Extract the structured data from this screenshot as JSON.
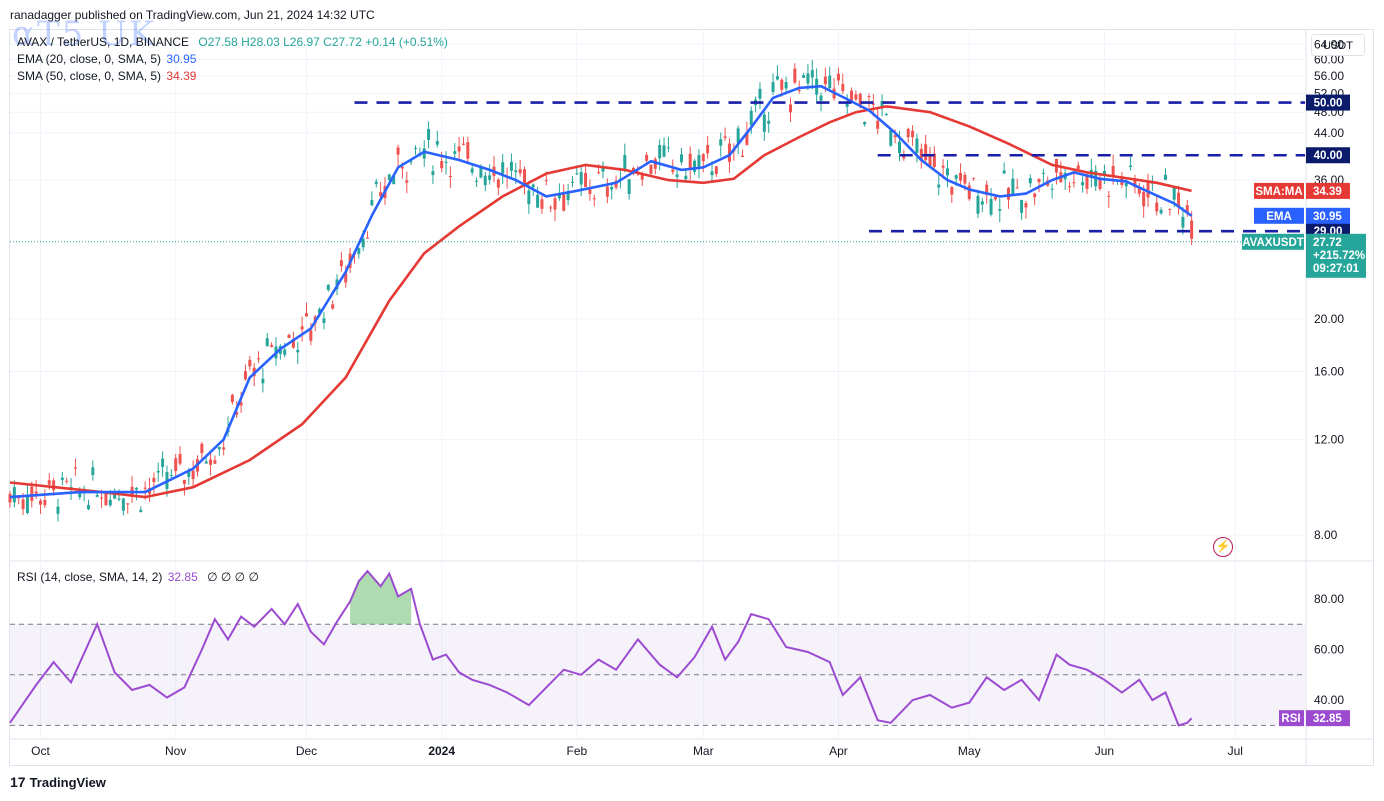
{
  "header": {
    "publisher": "ranadagger published on TradingView.com, Jun 21, 2024 14:32 UTC",
    "watermark": "αΤ5 UK"
  },
  "legend": {
    "symbol": "AVAX / TetherUS, 1D, BINANCE",
    "ohlc": "O27.58  H28.03  L26.97  C27.72  +0.14 (+0.51%)",
    "ema_label": "EMA (20, close, 0, SMA, 5)",
    "ema_value": "30.95",
    "sma_label": "SMA (50, close, 0, SMA, 5)",
    "sma_value": "34.39",
    "rsi_label": "RSI (14, close, SMA, 14, 2)",
    "rsi_value": "32.85",
    "rsi_extra": "∅  ∅  ∅  ∅"
  },
  "currency": "USDT",
  "footer": {
    "brand": "TradingView"
  },
  "colors": {
    "up": "#26a69a",
    "down": "#ef5350",
    "ema": "#2962ff",
    "sma": "#e53935",
    "rsi": "#9c4bd1",
    "level": "#1a1fa8"
  },
  "chart_data": [
    {
      "type": "candlestick",
      "title": "AVAX / TetherUS, 1D, BINANCE",
      "y_scale": "log",
      "ylim": [
        7.2,
        68
      ],
      "y_ticks": [
        "64.00",
        "60.00",
        "56.00",
        "52.00",
        "48.00",
        "44.00",
        "36.00",
        "20.00",
        "16.00",
        "12.00",
        "8.00"
      ],
      "x_ticks": [
        "Oct",
        "Nov",
        "Dec",
        "2024",
        "Feb",
        "Mar",
        "Apr",
        "May",
        "Jun",
        "Jul"
      ],
      "x_range": [
        "2023-09-24",
        "2024-07-17"
      ],
      "series": [
        {
          "name": "EMA (20, close, 0, SMA, 5)",
          "last": 30.95,
          "points": [
            [
              "2023-09-24",
              9.4
            ],
            [
              "2023-10-10",
              9.6
            ],
            [
              "2023-10-25",
              9.6
            ],
            [
              "2023-11-05",
              10.6
            ],
            [
              "2023-11-12",
              12.0
            ],
            [
              "2023-11-18",
              15.6
            ],
            [
              "2023-11-25",
              17.6
            ],
            [
              "2023-12-02",
              19.2
            ],
            [
              "2023-12-10",
              24.4
            ],
            [
              "2023-12-16",
              31.0
            ],
            [
              "2023-12-22",
              38.0
            ],
            [
              "2023-12-28",
              40.6
            ],
            [
              "2024-01-05",
              39.2
            ],
            [
              "2024-01-12",
              37.6
            ],
            [
              "2024-01-18",
              36.0
            ],
            [
              "2024-01-25",
              33.6
            ],
            [
              "2024-02-01",
              34.4
            ],
            [
              "2024-02-10",
              35.6
            ],
            [
              "2024-02-18",
              39.0
            ],
            [
              "2024-02-25",
              37.6
            ],
            [
              "2024-03-01",
              38.0
            ],
            [
              "2024-03-07",
              40.0
            ],
            [
              "2024-03-12",
              45.0
            ],
            [
              "2024-03-17",
              51.0
            ],
            [
              "2024-03-23",
              53.2
            ],
            [
              "2024-03-28",
              53.6
            ],
            [
              "2024-04-02",
              51.2
            ],
            [
              "2024-04-08",
              48.4
            ],
            [
              "2024-04-14",
              44.0
            ],
            [
              "2024-04-20",
              39.2
            ],
            [
              "2024-04-26",
              36.0
            ],
            [
              "2024-05-01",
              34.6
            ],
            [
              "2024-05-08",
              33.6
            ],
            [
              "2024-05-14",
              34.0
            ],
            [
              "2024-05-20",
              36.0
            ],
            [
              "2024-05-25",
              37.2
            ],
            [
              "2024-05-31",
              36.2
            ],
            [
              "2024-06-06",
              35.8
            ],
            [
              "2024-06-12",
              34.0
            ],
            [
              "2024-06-17",
              32.6
            ],
            [
              "2024-06-21",
              30.95
            ]
          ]
        },
        {
          "name": "SMA (50, close, 0, SMA, 5)",
          "last": 34.39,
          "points": [
            [
              "2023-09-24",
              10.0
            ],
            [
              "2023-10-15",
              9.6
            ],
            [
              "2023-10-25",
              9.4
            ],
            [
              "2023-11-05",
              9.8
            ],
            [
              "2023-11-18",
              11.0
            ],
            [
              "2023-11-30",
              12.8
            ],
            [
              "2023-12-10",
              15.6
            ],
            [
              "2023-12-20",
              21.6
            ],
            [
              "2023-12-28",
              26.4
            ],
            [
              "2024-01-05",
              29.6
            ],
            [
              "2024-01-15",
              33.6
            ],
            [
              "2024-01-25",
              37.0
            ],
            [
              "2024-02-03",
              38.4
            ],
            [
              "2024-02-12",
              37.6
            ],
            [
              "2024-02-22",
              36.0
            ],
            [
              "2024-03-01",
              35.6
            ],
            [
              "2024-03-08",
              36.2
            ],
            [
              "2024-03-15",
              40.0
            ],
            [
              "2024-03-23",
              43.2
            ],
            [
              "2024-03-30",
              46.0
            ],
            [
              "2024-04-05",
              48.0
            ],
            [
              "2024-04-12",
              49.2
            ],
            [
              "2024-04-22",
              48.0
            ],
            [
              "2024-05-01",
              45.2
            ],
            [
              "2024-05-10",
              42.0
            ],
            [
              "2024-05-20",
              38.4
            ],
            [
              "2024-05-28",
              37.2
            ],
            [
              "2024-06-05",
              36.4
            ],
            [
              "2024-06-13",
              35.6
            ],
            [
              "2024-06-21",
              34.39
            ]
          ]
        }
      ],
      "levels": [
        {
          "label": "50.00",
          "value": 50.0,
          "from": "2023-12-12",
          "to": "2024-07-17"
        },
        {
          "label": "40.00",
          "value": 40.0,
          "from": "2024-04-10",
          "to": "2024-07-17"
        },
        {
          "label": "29.00",
          "value": 29.0,
          "from": "2024-04-08",
          "to": "2024-07-17"
        }
      ],
      "last_price": {
        "label": "AVAXUSDT",
        "value": "27.72",
        "change": "+215.72%",
        "countdown": "09:27:01"
      },
      "ema_tag": {
        "label": "EMA",
        "value": "30.95"
      },
      "sma_tag": {
        "label": "SMA:MA",
        "value": "34.39"
      }
    },
    {
      "type": "line",
      "title": "RSI (14, close, SMA, 14, 2)",
      "ylim": [
        25,
        95
      ],
      "y_ticks": [
        "80.00",
        "60.00",
        "40.00"
      ],
      "bands": [
        30,
        50,
        70
      ],
      "last": 32.85,
      "points": [
        [
          "2023-09-24",
          31
        ],
        [
          "2023-09-30",
          46
        ],
        [
          "2023-10-04",
          55
        ],
        [
          "2023-10-08",
          47
        ],
        [
          "2023-10-14",
          70
        ],
        [
          "2023-10-18",
          51
        ],
        [
          "2023-10-22",
          44
        ],
        [
          "2023-10-26",
          46
        ],
        [
          "2023-10-30",
          41
        ],
        [
          "2023-11-03",
          45
        ],
        [
          "2023-11-07",
          60
        ],
        [
          "2023-11-10",
          72
        ],
        [
          "2023-11-13",
          64
        ],
        [
          "2023-11-16",
          73
        ],
        [
          "2023-11-19",
          69
        ],
        [
          "2023-11-23",
          76
        ],
        [
          "2023-11-26",
          70
        ],
        [
          "2023-11-29",
          78
        ],
        [
          "2023-12-02",
          67
        ],
        [
          "2023-12-05",
          62
        ],
        [
          "2023-12-08",
          71
        ],
        [
          "2023-12-11",
          79
        ],
        [
          "2023-12-13",
          87
        ],
        [
          "2023-12-15",
          91
        ],
        [
          "2023-12-18",
          85
        ],
        [
          "2023-12-20",
          90
        ],
        [
          "2023-12-22",
          81
        ],
        [
          "2023-12-25",
          84
        ],
        [
          "2023-12-27",
          70
        ],
        [
          "2023-12-30",
          56
        ],
        [
          "2024-01-02",
          58
        ],
        [
          "2024-01-05",
          51
        ],
        [
          "2024-01-08",
          48
        ],
        [
          "2024-01-12",
          46
        ],
        [
          "2024-01-16",
          43
        ],
        [
          "2024-01-21",
          38
        ],
        [
          "2024-01-25",
          45
        ],
        [
          "2024-01-29",
          52
        ],
        [
          "2024-02-02",
          50
        ],
        [
          "2024-02-06",
          56
        ],
        [
          "2024-02-10",
          52
        ],
        [
          "2024-02-15",
          64
        ],
        [
          "2024-02-20",
          54
        ],
        [
          "2024-02-24",
          49
        ],
        [
          "2024-02-28",
          57
        ],
        [
          "2024-03-03",
          69
        ],
        [
          "2024-03-06",
          56
        ],
        [
          "2024-03-09",
          63
        ],
        [
          "2024-03-12",
          74
        ],
        [
          "2024-03-16",
          72
        ],
        [
          "2024-03-20",
          61
        ],
        [
          "2024-03-25",
          59
        ],
        [
          "2024-03-30",
          55
        ],
        [
          "2024-04-02",
          42
        ],
        [
          "2024-04-06",
          49
        ],
        [
          "2024-04-10",
          32
        ],
        [
          "2024-04-13",
          31
        ],
        [
          "2024-04-18",
          40
        ],
        [
          "2024-04-22",
          42
        ],
        [
          "2024-04-27",
          37
        ],
        [
          "2024-05-01",
          39
        ],
        [
          "2024-05-05",
          49
        ],
        [
          "2024-05-09",
          44
        ],
        [
          "2024-05-13",
          48
        ],
        [
          "2024-05-17",
          40
        ],
        [
          "2024-05-21",
          58
        ],
        [
          "2024-05-24",
          54
        ],
        [
          "2024-05-28",
          52
        ],
        [
          "2024-06-01",
          48
        ],
        [
          "2024-06-05",
          43
        ],
        [
          "2024-06-09",
          48
        ],
        [
          "2024-06-12",
          40
        ],
        [
          "2024-06-15",
          43
        ],
        [
          "2024-06-18",
          30
        ],
        [
          "2024-06-20",
          31
        ],
        [
          "2024-06-21",
          32.85
        ]
      ]
    }
  ]
}
